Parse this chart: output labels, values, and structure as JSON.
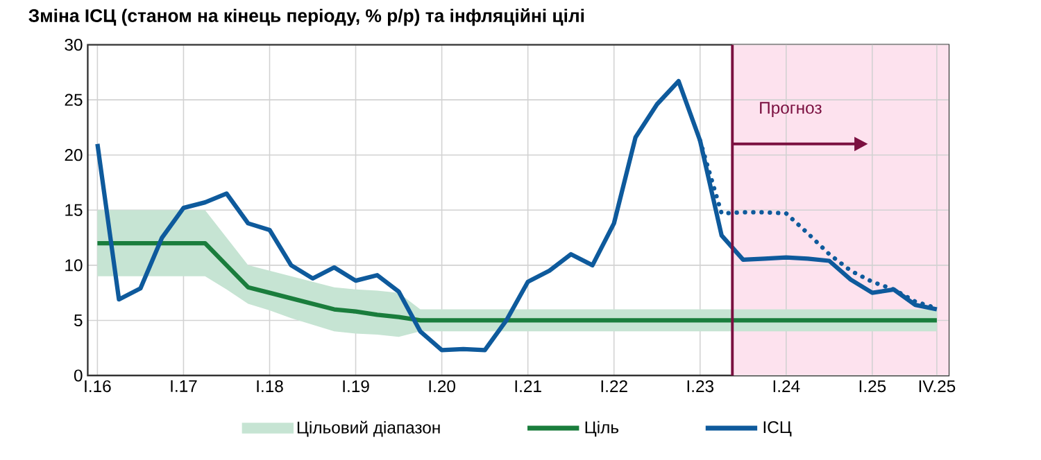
{
  "chart_data": {
    "type": "line",
    "title": "Зміна ІСЦ (станом на кінець періоду, % р/р) та інфляційні цілі",
    "categories": [
      "I.16",
      null,
      null,
      null,
      "I.17",
      null,
      null,
      null,
      "I.18",
      null,
      null,
      null,
      "I.19",
      null,
      null,
      null,
      "I.20",
      null,
      null,
      null,
      "I.21",
      null,
      null,
      null,
      "I.22",
      null,
      null,
      null,
      "I.23",
      null,
      null,
      null,
      "I.24",
      null,
      null,
      null,
      "I.25",
      null,
      null,
      "IV.25"
    ],
    "ylim": [
      0,
      30
    ],
    "yticks": [
      0,
      5,
      10,
      15,
      20,
      25,
      30
    ],
    "grid": true,
    "legend": "bottom",
    "annotations": [
      "Прогноз"
    ],
    "series": [
      {
        "name": "Цільовий діапазон",
        "type": "area",
        "color": "#c6e4d3",
        "values": [
          null,
          null,
          null,
          null,
          null,
          null,
          null,
          null,
          null,
          null,
          null,
          null,
          null,
          null,
          null,
          null,
          null,
          null,
          null,
          null,
          null,
          null,
          null,
          null,
          null,
          null,
          null,
          null,
          null,
          null,
          null,
          null,
          null,
          null,
          null,
          null,
          null,
          null,
          null,
          null
        ],
        "lower": [
          9,
          9,
          9,
          9,
          9,
          9,
          7.8,
          6.5,
          5.9,
          5.2,
          4.6,
          4,
          3.8,
          3.7,
          3.5,
          4,
          4,
          4,
          4,
          4,
          4,
          4,
          4,
          4,
          4,
          4,
          4,
          4,
          4,
          4,
          4,
          4,
          4,
          4,
          4,
          4,
          4,
          4,
          4,
          4
        ],
        "upper": [
          15,
          15,
          15,
          15,
          15,
          15,
          12.5,
          10,
          9.5,
          9,
          8.5,
          8,
          7.8,
          7.7,
          7.5,
          6,
          6,
          6,
          6,
          6,
          6,
          6,
          6,
          6,
          6,
          6,
          6,
          6,
          6,
          6,
          6,
          6,
          6,
          6,
          6,
          6,
          6,
          6,
          6,
          6
        ]
      },
      {
        "name": "Ціль",
        "color": "#1a7d3c",
        "values": [
          12,
          12,
          12,
          12,
          12,
          12,
          10,
          8,
          7.5,
          7,
          6.5,
          6,
          5.8,
          5.5,
          5.3,
          5,
          5,
          5,
          5,
          5,
          5,
          5,
          5,
          5,
          5,
          5,
          5,
          5,
          5,
          5,
          5,
          5,
          5,
          5,
          5,
          5,
          5,
          5,
          5,
          5
        ]
      },
      {
        "name": "ІСЦ",
        "color": "#0e5a9c",
        "values": [
          21.0,
          6.9,
          7.9,
          12.5,
          15.2,
          15.7,
          16.5,
          13.8,
          13.2,
          10.0,
          8.8,
          9.8,
          8.6,
          9.1,
          7.6,
          4.0,
          2.3,
          2.4,
          2.3,
          5.0,
          8.5,
          9.5,
          11.0,
          10.0,
          13.8,
          21.6,
          24.6,
          26.7,
          21.3,
          12.7,
          10.5,
          10.6,
          10.7,
          10.6,
          10.4,
          8.7,
          7.5,
          7.8,
          6.4,
          6.0
        ]
      },
      {
        "line_style": "dotted",
        "color": "#0e5a9c",
        "values": [
          null,
          null,
          null,
          null,
          null,
          null,
          null,
          null,
          null,
          null,
          null,
          null,
          null,
          null,
          null,
          null,
          null,
          null,
          null,
          null,
          null,
          null,
          null,
          null,
          null,
          null,
          null,
          null,
          21.3,
          14.7,
          14.8,
          14.8,
          14.7,
          12.9,
          11.0,
          9.5,
          8.5,
          7.8,
          6.7,
          6.1
        ]
      }
    ]
  }
}
